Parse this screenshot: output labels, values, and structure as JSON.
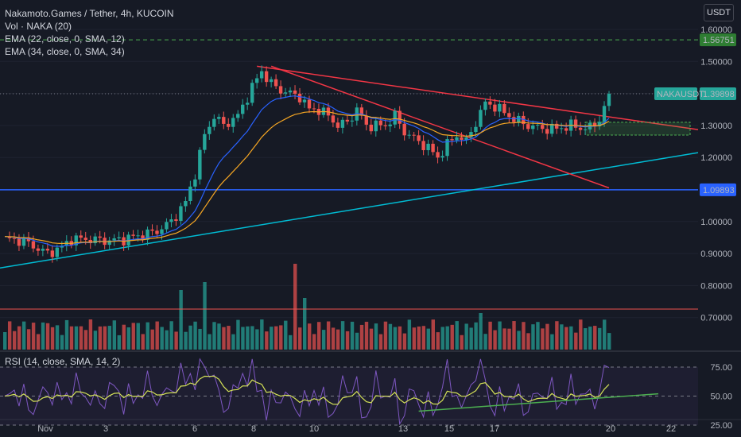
{
  "header": {
    "title": "Nakamoto.Games / Tether, 4h, KUCOIN",
    "vol_label": "Vol · NAKA (20)",
    "ema1_label": "EMA (22, close, 0, SMA, 12)",
    "ema2_label": "EMA (34, close, 0, SMA, 34)",
    "rsi_label": "RSI (14, close, SMA, 14, 2)",
    "currency_button": "USDT"
  },
  "colors": {
    "background": "#161a25",
    "up": "#26a69a",
    "down": "#ef5350",
    "ema_fast": "#2962ff",
    "ema_slow": "#f5a623",
    "trendline": "#f23645",
    "support": "#00bcd4",
    "hline": "#2962ff",
    "rsi": "#7e57c2",
    "rsi_ma": "#d4e157",
    "rsi_trend": "#4caf50"
  },
  "chart_data": {
    "type": "candlestick",
    "symbol": "NAKAUSDT",
    "last_price": "1.39898",
    "target_price": "1.56751",
    "hline_price": "1.09893",
    "ylim": [
      0.62,
      1.64
    ],
    "y_ticks": [
      "1.60000",
      "1.50000",
      "1.40000",
      "1.30000",
      "1.20000",
      "1.10000",
      "1.00000",
      "0.90000",
      "0.80000",
      "0.70000"
    ],
    "x_ticks": [
      "Nov",
      "3",
      "6",
      "8",
      "10",
      "13",
      "15",
      "17",
      "20",
      "22"
    ],
    "rsi_ticks": [
      "75.00",
      "50.00",
      "25.00"
    ],
    "anchors": [
      [
        0,
        0.945
      ],
      [
        4,
        0.94
      ],
      [
        7,
        0.915
      ],
      [
        9,
        0.9
      ],
      [
        12,
        0.92
      ],
      [
        14,
        0.945
      ],
      [
        17,
        0.945
      ],
      [
        22,
        0.94
      ],
      [
        25,
        0.945
      ],
      [
        28,
        0.955
      ],
      [
        32,
        0.97
      ],
      [
        35,
        1.0
      ],
      [
        38,
        1.06
      ],
      [
        40,
        1.15
      ],
      [
        42,
        1.27
      ],
      [
        44,
        1.33
      ],
      [
        46,
        1.3
      ],
      [
        49,
        1.33
      ],
      [
        52,
        1.42
      ],
      [
        54,
        1.47
      ],
      [
        56,
        1.43
      ],
      [
        58,
        1.41
      ],
      [
        62,
        1.39
      ],
      [
        64,
        1.35
      ],
      [
        66,
        1.35
      ],
      [
        68,
        1.33
      ],
      [
        70,
        1.3
      ],
      [
        72,
        1.31
      ],
      [
        74,
        1.35
      ],
      [
        76,
        1.3
      ],
      [
        80,
        1.3
      ],
      [
        82,
        1.33
      ],
      [
        84,
        1.28
      ],
      [
        87,
        1.25
      ],
      [
        89,
        1.23
      ],
      [
        91,
        1.2
      ],
      [
        93,
        1.24
      ],
      [
        95,
        1.27
      ],
      [
        97,
        1.25
      ],
      [
        99,
        1.31
      ],
      [
        101,
        1.37
      ],
      [
        103,
        1.36
      ],
      [
        105,
        1.34
      ],
      [
        107,
        1.32
      ],
      [
        110,
        1.3
      ],
      [
        113,
        1.29
      ],
      [
        116,
        1.29
      ],
      [
        119,
        1.3
      ],
      [
        122,
        1.29
      ],
      [
        124,
        1.3
      ],
      [
        126,
        1.35
      ],
      [
        127,
        1.39
      ]
    ]
  }
}
